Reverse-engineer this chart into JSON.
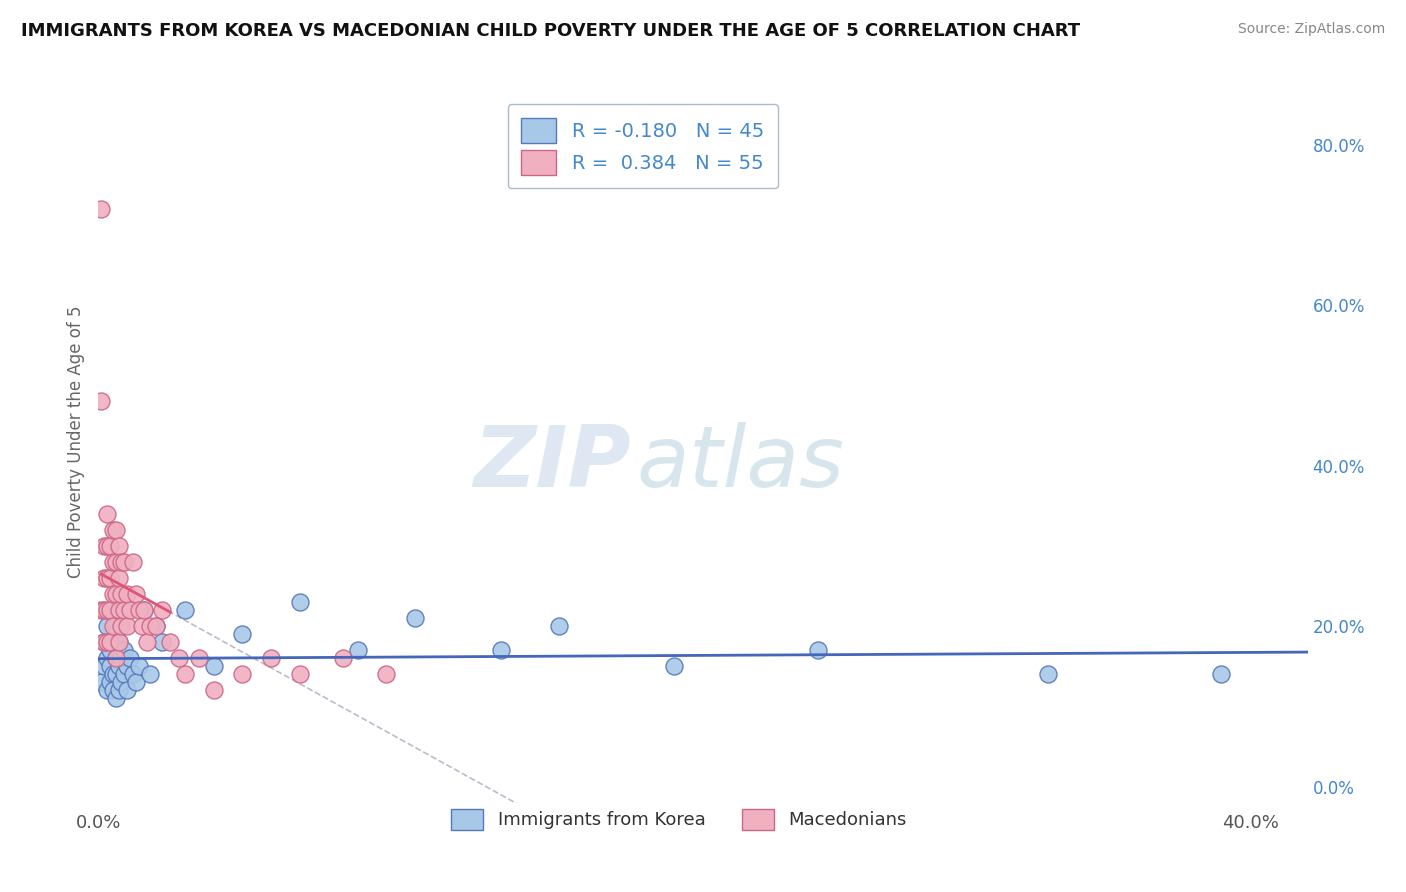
{
  "title": "IMMIGRANTS FROM KOREA VS MACEDONIAN CHILD POVERTY UNDER THE AGE OF 5 CORRELATION CHART",
  "source": "Source: ZipAtlas.com",
  "ylabel": "Child Poverty Under the Age of 5",
  "xlim": [
    0.0,
    0.42
  ],
  "ylim": [
    -0.02,
    0.88
  ],
  "right_yticks": [
    0.0,
    0.2,
    0.4,
    0.6,
    0.8
  ],
  "right_yticklabels": [
    "0.0%",
    "20.0%",
    "40.0%",
    "60.0%",
    "80.0%"
  ],
  "xticks": [
    0.0,
    0.4
  ],
  "xticklabels": [
    "0.0%",
    "40.0%"
  ],
  "korea_R": -0.18,
  "korea_N": 45,
  "macedonian_R": 0.384,
  "macedonian_N": 55,
  "korea_color": "#a8c8e8",
  "korea_edge_color": "#5577bb",
  "macedonian_color": "#f0b0c0",
  "macedonian_edge_color": "#cc6688",
  "korea_trend_color": "#4466bb",
  "macedonian_trend_color": "#dd5577",
  "mac_trend_dashed_color": "#bbbbcc",
  "watermark_zip": "ZIP",
  "watermark_atlas": "atlas",
  "background_color": "#ffffff",
  "grid_color": "#ccccdd",
  "label_color": "#4488cc",
  "korea_scatter_x": [
    0.001,
    0.002,
    0.002,
    0.003,
    0.003,
    0.003,
    0.004,
    0.004,
    0.004,
    0.005,
    0.005,
    0.005,
    0.006,
    0.006,
    0.006,
    0.006,
    0.007,
    0.007,
    0.007,
    0.008,
    0.008,
    0.009,
    0.009,
    0.01,
    0.01,
    0.011,
    0.012,
    0.013,
    0.014,
    0.016,
    0.018,
    0.02,
    0.022,
    0.03,
    0.04,
    0.05,
    0.07,
    0.09,
    0.11,
    0.14,
    0.16,
    0.2,
    0.25,
    0.33,
    0.39
  ],
  "korea_scatter_y": [
    0.13,
    0.18,
    0.15,
    0.16,
    0.12,
    0.2,
    0.17,
    0.13,
    0.15,
    0.14,
    0.18,
    0.12,
    0.16,
    0.2,
    0.14,
    0.11,
    0.15,
    0.18,
    0.12,
    0.16,
    0.13,
    0.17,
    0.14,
    0.15,
    0.12,
    0.16,
    0.14,
    0.13,
    0.15,
    0.22,
    0.14,
    0.2,
    0.18,
    0.22,
    0.15,
    0.19,
    0.23,
    0.17,
    0.21,
    0.17,
    0.2,
    0.15,
    0.17,
    0.14,
    0.14
  ],
  "macedonian_scatter_x": [
    0.001,
    0.001,
    0.001,
    0.002,
    0.002,
    0.002,
    0.002,
    0.003,
    0.003,
    0.003,
    0.003,
    0.003,
    0.004,
    0.004,
    0.004,
    0.004,
    0.005,
    0.005,
    0.005,
    0.005,
    0.006,
    0.006,
    0.006,
    0.006,
    0.007,
    0.007,
    0.007,
    0.007,
    0.008,
    0.008,
    0.008,
    0.009,
    0.009,
    0.01,
    0.01,
    0.011,
    0.012,
    0.013,
    0.014,
    0.015,
    0.016,
    0.017,
    0.018,
    0.02,
    0.022,
    0.025,
    0.028,
    0.03,
    0.035,
    0.04,
    0.05,
    0.06,
    0.07,
    0.085,
    0.1
  ],
  "macedonian_scatter_y": [
    0.72,
    0.48,
    0.22,
    0.3,
    0.26,
    0.22,
    0.18,
    0.34,
    0.3,
    0.26,
    0.22,
    0.18,
    0.3,
    0.26,
    0.22,
    0.18,
    0.32,
    0.28,
    0.24,
    0.2,
    0.32,
    0.28,
    0.24,
    0.16,
    0.3,
    0.26,
    0.22,
    0.18,
    0.28,
    0.24,
    0.2,
    0.28,
    0.22,
    0.24,
    0.2,
    0.22,
    0.28,
    0.24,
    0.22,
    0.2,
    0.22,
    0.18,
    0.2,
    0.2,
    0.22,
    0.18,
    0.16,
    0.14,
    0.16,
    0.12,
    0.14,
    0.16,
    0.14,
    0.16,
    0.14
  ]
}
